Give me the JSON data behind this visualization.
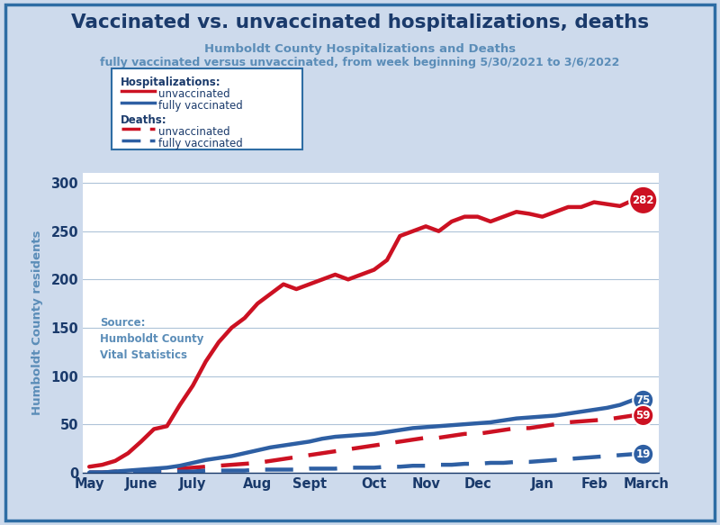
{
  "title": "Vaccinated vs. unvaccinated hospitalizations, deaths",
  "subtitle1": "Humboldt County Hospitalizations and Deaths",
  "subtitle2": "fully vaccinated versus unvaccinated, from week beginning 5/30/2021 to 3/6/2022",
  "ylabel": "Humboldt County residents",
  "source_text": "Source:\nHumboldt County\nVital Statistics",
  "title_color": "#1a3a6b",
  "subtitle_color": "#5b8db8",
  "ylabel_color": "#5b8db8",
  "source_color": "#5b8db8",
  "bg_color": "#cddaec",
  "plot_bg_color": "#ffffff",
  "border_color": "#2e6da4",
  "grid_color": "#aec3d8",
  "red_color": "#cc1122",
  "blue_color": "#2e5fa3",
  "x_labels": [
    "May",
    "June",
    "July",
    "Aug",
    "Sept",
    "Oct",
    "Nov",
    "Dec",
    "Jan",
    "Feb",
    "March"
  ],
  "x_positions": [
    0,
    4,
    8,
    13,
    17,
    22,
    26,
    30,
    35,
    39,
    43
  ],
  "hosp_unvacc": [
    6,
    8,
    12,
    20,
    32,
    45,
    48,
    70,
    90,
    115,
    135,
    150,
    160,
    175,
    185,
    195,
    190,
    195,
    200,
    205,
    200,
    205,
    210,
    220,
    245,
    250,
    255,
    250,
    260,
    265,
    265,
    260,
    265,
    270,
    268,
    265,
    270,
    275,
    275,
    280,
    278,
    276,
    282
  ],
  "hosp_vacc": [
    0,
    0,
    1,
    2,
    3,
    4,
    5,
    7,
    10,
    13,
    15,
    17,
    20,
    23,
    26,
    28,
    30,
    32,
    35,
    37,
    38,
    39,
    40,
    42,
    44,
    46,
    47,
    48,
    49,
    50,
    51,
    52,
    54,
    56,
    57,
    58,
    59,
    61,
    63,
    65,
    67,
    70,
    75
  ],
  "death_unvacc": [
    0,
    0,
    1,
    1,
    2,
    2,
    3,
    4,
    5,
    6,
    7,
    8,
    9,
    10,
    12,
    14,
    16,
    18,
    20,
    22,
    24,
    26,
    28,
    30,
    32,
    34,
    36,
    36,
    38,
    40,
    40,
    42,
    44,
    46,
    46,
    48,
    50,
    52,
    53,
    54,
    55,
    57,
    59
  ],
  "death_vacc": [
    0,
    0,
    0,
    0,
    0,
    1,
    1,
    1,
    1,
    2,
    2,
    2,
    2,
    3,
    3,
    3,
    3,
    4,
    4,
    4,
    5,
    5,
    5,
    6,
    6,
    7,
    7,
    8,
    8,
    9,
    9,
    10,
    10,
    11,
    11,
    12,
    13,
    14,
    15,
    16,
    17,
    18,
    19
  ],
  "end_labels": {
    "hosp_unvacc": "282",
    "hosp_vacc": "75",
    "death_unvacc": "59",
    "death_vacc": "19"
  },
  "ylim": [
    0,
    310
  ],
  "yticks": [
    0,
    50,
    100,
    150,
    200,
    250,
    300
  ]
}
